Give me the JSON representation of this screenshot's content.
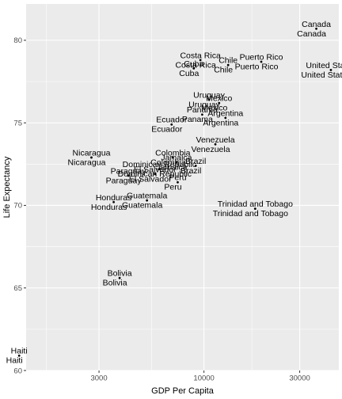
{
  "chart_data": {
    "type": "scatter",
    "title": "",
    "xlabel": "GDP Per Capita",
    "ylabel": "Life Expectancy",
    "x_scale": "log10",
    "xlim": [
      1300,
      47000
    ],
    "ylim": [
      60,
      82.2
    ],
    "x_ticks": [
      {
        "value": 3000,
        "label": "3000"
      },
      {
        "value": 10000,
        "label": "10000"
      },
      {
        "value": 30000,
        "label": "30000"
      }
    ],
    "y_ticks": [
      {
        "value": 60,
        "label": "60"
      },
      {
        "value": 65,
        "label": "65"
      },
      {
        "value": 70,
        "label": "70"
      },
      {
        "value": 75,
        "label": "75"
      },
      {
        "value": 80,
        "label": "80"
      }
    ],
    "grid": true,
    "background": "#ebebeb",
    "grid_major_color": "#ffffff",
    "point_color": "#000000",
    "points": [
      {
        "label": "Canada",
        "x": 36300,
        "y": 80.7
      },
      {
        "label": "Puerto Rico",
        "x": 19300,
        "y": 78.7
      },
      {
        "label": "United States",
        "x": 42900,
        "y": 78.2
      },
      {
        "label": "Costa Rica",
        "x": 9600,
        "y": 78.8
      },
      {
        "label": "Chile",
        "x": 13200,
        "y": 78.5
      },
      {
        "label": "Cuba",
        "x": 8900,
        "y": 78.3
      },
      {
        "label": "Uruguay",
        "x": 10600,
        "y": 76.4
      },
      {
        "label": "Mexico",
        "x": 11900,
        "y": 76.2
      },
      {
        "label": "Panama",
        "x": 9800,
        "y": 75.5
      },
      {
        "label": "Argentina",
        "x": 12800,
        "y": 75.3
      },
      {
        "label": "Ecuador",
        "x": 6900,
        "y": 74.9
      },
      {
        "label": "Venezuela",
        "x": 11400,
        "y": 73.7
      },
      {
        "label": "Nicaragua",
        "x": 2750,
        "y": 72.9
      },
      {
        "label": "Colombia",
        "x": 7000,
        "y": 72.9
      },
      {
        "label": "Brazil",
        "x": 9100,
        "y": 72.4
      },
      {
        "label": "Dominican Republic",
        "x": 6000,
        "y": 72.2
      },
      {
        "label": "Jamaica",
        "x": 7300,
        "y": 72.6
      },
      {
        "label": "Paraguay",
        "x": 4200,
        "y": 71.8
      },
      {
        "label": "El Salvador",
        "x": 5700,
        "y": 71.9
      },
      {
        "label": "Peru",
        "x": 7400,
        "y": 71.4
      },
      {
        "label": "Honduras",
        "x": 3550,
        "y": 70.2
      },
      {
        "label": "Guatemala",
        "x": 5200,
        "y": 70.3
      },
      {
        "label": "Trinidad and Tobago",
        "x": 18000,
        "y": 69.8
      },
      {
        "label": "Bolivia",
        "x": 3800,
        "y": 65.6
      },
      {
        "label": "Haiti",
        "x": 1200,
        "y": 60.9
      }
    ]
  }
}
